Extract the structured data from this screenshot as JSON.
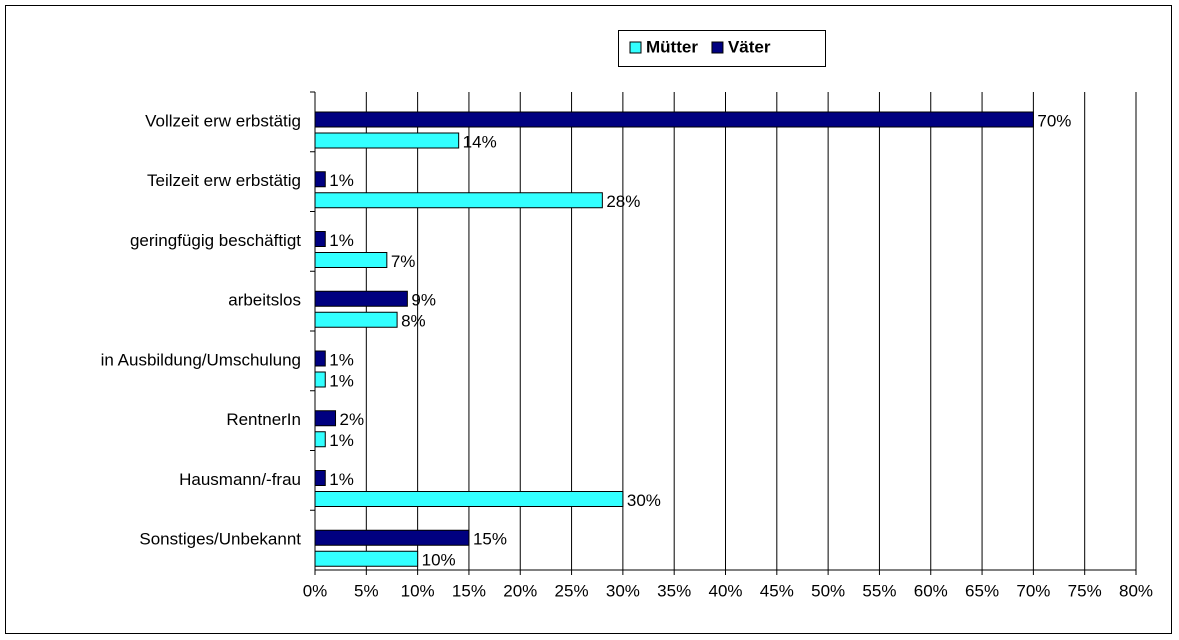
{
  "chart_data": {
    "type": "bar",
    "orientation": "horizontal",
    "categories": [
      "Vollzeit erw erbstätig",
      "Teilzeit erw erbstätig",
      "geringfügig beschäftigt",
      "arbeitslos",
      "in Ausbildung/Umschulung",
      "RentnerIn",
      "Hausmann/-frau",
      "Sonstiges/Unbekannt"
    ],
    "series": [
      {
        "name": "Mütter",
        "color": "#33ffff",
        "values": [
          14,
          28,
          7,
          8,
          1,
          1,
          30,
          10
        ],
        "value_labels": [
          "14%",
          "28%",
          "7%",
          "8%",
          "1%",
          "1%",
          "30%",
          "10%"
        ]
      },
      {
        "name": "Väter",
        "color": "#000080",
        "values": [
          70,
          1,
          1,
          9,
          1,
          2,
          1,
          15
        ],
        "value_labels": [
          "70%",
          "1%",
          "1%",
          "9%",
          "1%",
          "2%",
          "1%",
          "15%"
        ]
      }
    ],
    "xlim": [
      0,
      80
    ],
    "xticks": [
      {
        "value": 0,
        "label": "0%"
      },
      {
        "value": 5,
        "label": "5%"
      },
      {
        "value": 10,
        "label": "10%"
      },
      {
        "value": 15,
        "label": "15%"
      },
      {
        "value": 20,
        "label": "20%"
      },
      {
        "value": 25,
        "label": "25%"
      },
      {
        "value": 30,
        "label": "30%"
      },
      {
        "value": 35,
        "label": "35%"
      },
      {
        "value": 40,
        "label": "40%"
      },
      {
        "value": 45,
        "label": "45%"
      },
      {
        "value": 50,
        "label": "50%"
      },
      {
        "value": 55,
        "label": "55%"
      },
      {
        "value": 60,
        "label": "60%"
      },
      {
        "value": 65,
        "label": "65%"
      },
      {
        "value": 70,
        "label": "70%"
      },
      {
        "value": 75,
        "label": "75%"
      },
      {
        "value": 80,
        "label": "80%"
      }
    ],
    "grid": true,
    "legend": "top"
  }
}
